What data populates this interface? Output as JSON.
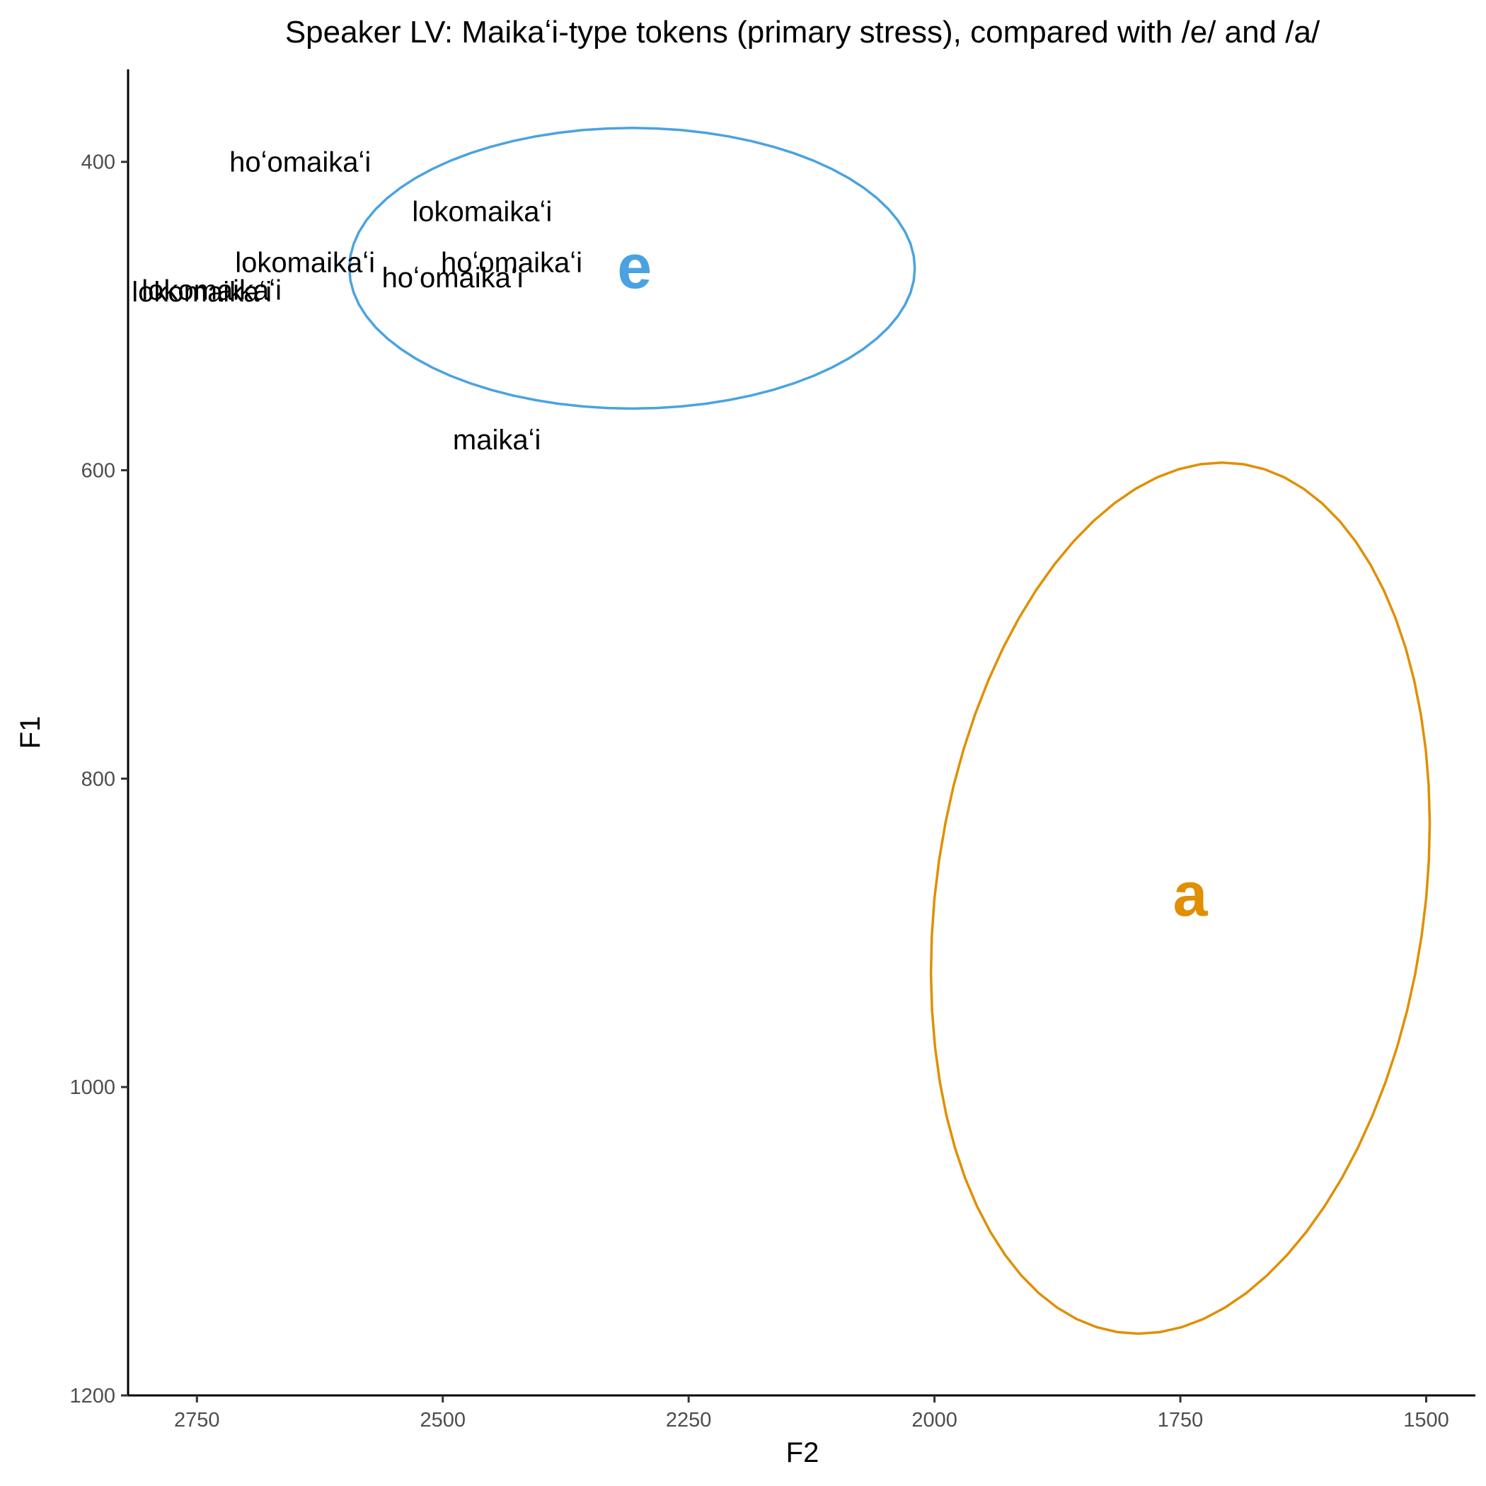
{
  "chart_data": {
    "type": "scatter",
    "title": "Speaker LV: Maikaʻi-type tokens (primary stress), compared with /e/ and /a/",
    "xlabel": "F2",
    "ylabel": "F1",
    "x_reversed": true,
    "y_reversed": true,
    "xlim": [
      2820,
      1450
    ],
    "ylim": [
      1200,
      340
    ],
    "x_ticks": [
      2750,
      2500,
      2250,
      2000,
      1750,
      1500
    ],
    "y_ticks": [
      400,
      600,
      800,
      1000,
      1200
    ],
    "grid": false,
    "legend": "none",
    "tokens": [
      {
        "label": "hoʻomaikaʻi",
        "x": 2645,
        "y": 400
      },
      {
        "label": "lokomaikaʻi",
        "x": 2460,
        "y": 432
      },
      {
        "label": "lokomaikaʻi",
        "x": 2640,
        "y": 465
      },
      {
        "label": "hoʻomaikaʻi",
        "x": 2430,
        "y": 465
      },
      {
        "label": "hoʻomaikaʻi",
        "x": 2490,
        "y": 475
      },
      {
        "label": "lokomaikaʻi",
        "x": 2735,
        "y": 483
      },
      {
        "label": "lokomaikaʻi",
        "x": 2745,
        "y": 484
      },
      {
        "label": "maikaʻi",
        "x": 2445,
        "y": 580
      }
    ],
    "vowels": [
      {
        "label": "e",
        "color": "#4aa3e0",
        "center": [
          2305,
          468
        ],
        "ellipse_x_range": [
          2595,
          2020
        ],
        "ellipse_y_range": [
          378,
          560
        ]
      },
      {
        "label": "a",
        "color": "#e08f00",
        "center": [
          1740,
          875
        ],
        "ellipse_x_range": [
          2000,
          1500
        ],
        "ellipse_y_range": [
          595,
          1160
        ],
        "ellipse_top_x": 1710,
        "ellipse_bottom_x": 1795
      }
    ]
  }
}
